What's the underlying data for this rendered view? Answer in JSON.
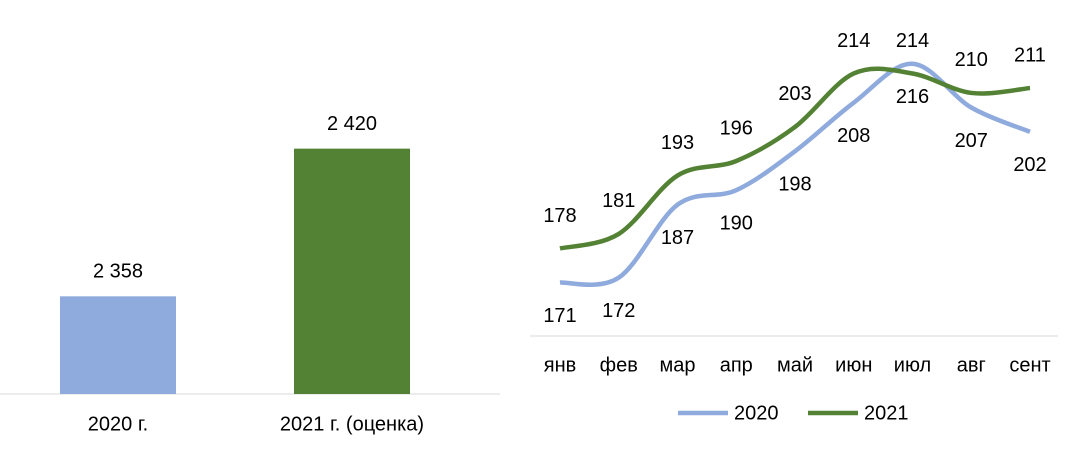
{
  "chart_data": [
    {
      "type": "bar",
      "categories": [
        "2020 г.",
        "2021 г. (оценка)"
      ],
      "values": [
        2358,
        2420
      ],
      "value_labels": [
        "2 358",
        "2 420"
      ],
      "colors": [
        "#8faadc",
        "#548235"
      ],
      "ylim": [
        2317,
        2474
      ]
    },
    {
      "type": "line",
      "categories": [
        "янв",
        "фев",
        "мар",
        "апр",
        "май",
        "июн",
        "июл",
        "авг",
        "сент"
      ],
      "series": [
        {
          "name": "2020",
          "color": "#8faadc",
          "values": [
            171,
            172,
            187,
            190,
            198,
            208,
            216,
            207,
            202
          ]
        },
        {
          "name": "2021",
          "color": "#548235",
          "values": [
            178,
            181,
            193,
            196,
            203,
            214,
            214,
            210,
            211
          ]
        }
      ],
      "ylim": [
        160,
        225
      ],
      "legend": "bottom"
    }
  ]
}
